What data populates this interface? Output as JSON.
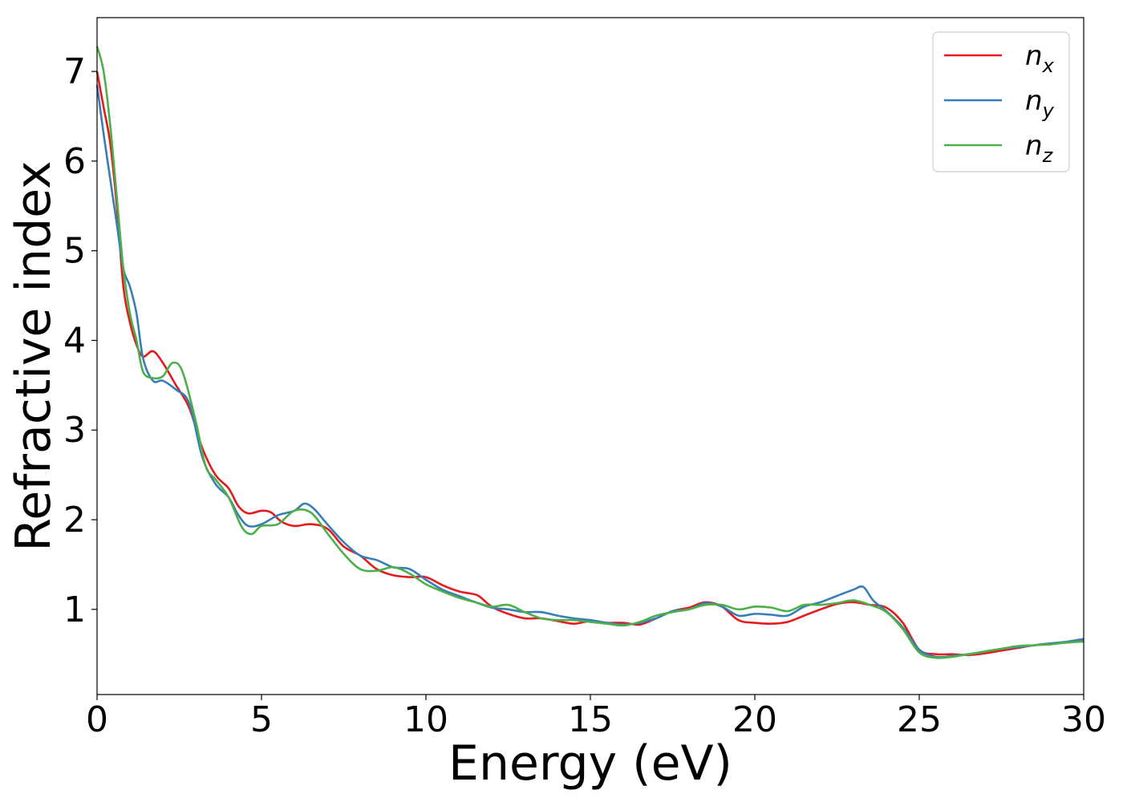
{
  "chart_data": {
    "type": "line",
    "xlabel": "Energy (eV)",
    "ylabel": "Refractive index",
    "xlim": [
      0,
      30
    ],
    "ylim": [
      0.05,
      7.6
    ],
    "x_ticks": [
      0,
      5,
      10,
      15,
      20,
      25,
      30
    ],
    "y_ticks": [
      1,
      2,
      3,
      4,
      5,
      6,
      7
    ],
    "grid": false,
    "legend_position": "top-right",
    "series": [
      {
        "name": "n",
        "subscript": "x",
        "color": "#e41a1c",
        "x": [
          0,
          0.2,
          0.4,
          0.6,
          0.8,
          1.0,
          1.2,
          1.4,
          1.7,
          2.0,
          2.4,
          2.8,
          3.2,
          3.6,
          4.0,
          4.3,
          4.6,
          5.0,
          5.3,
          5.6,
          6.0,
          6.5,
          7.0,
          7.5,
          8.0,
          8.5,
          9.0,
          9.5,
          10.0,
          10.5,
          11.0,
          11.3,
          11.6,
          12.0,
          12.5,
          13.0,
          13.5,
          14.0,
          14.5,
          15.0,
          15.5,
          16.0,
          16.5,
          17.0,
          17.5,
          18.0,
          18.5,
          19.0,
          19.5,
          20.0,
          20.5,
          21.0,
          21.5,
          22.0,
          22.5,
          23.0,
          23.5,
          24.0,
          24.5,
          25.0,
          25.5,
          26.0,
          26.5,
          27.0,
          27.5,
          28.0,
          28.5,
          29.0,
          29.5,
          30.0
        ],
        "y": [
          7.0,
          6.6,
          6.2,
          5.5,
          4.6,
          4.2,
          3.95,
          3.82,
          3.88,
          3.75,
          3.5,
          3.25,
          2.8,
          2.5,
          2.35,
          2.15,
          2.07,
          2.1,
          2.08,
          1.98,
          1.93,
          1.95,
          1.9,
          1.7,
          1.6,
          1.45,
          1.38,
          1.36,
          1.36,
          1.27,
          1.2,
          1.18,
          1.15,
          1.03,
          0.95,
          0.9,
          0.9,
          0.87,
          0.84,
          0.87,
          0.85,
          0.85,
          0.83,
          0.9,
          0.98,
          1.02,
          1.08,
          1.03,
          0.88,
          0.85,
          0.84,
          0.86,
          0.93,
          1.0,
          1.06,
          1.08,
          1.05,
          1.02,
          0.85,
          0.55,
          0.5,
          0.5,
          0.49,
          0.51,
          0.54,
          0.57,
          0.6,
          0.62,
          0.63,
          0.65
        ]
      },
      {
        "name": "n",
        "subscript": "y",
        "color": "#377eb8",
        "x": [
          0,
          0.2,
          0.4,
          0.6,
          0.8,
          1.0,
          1.2,
          1.4,
          1.7,
          2.0,
          2.4,
          2.8,
          3.2,
          3.6,
          4.0,
          4.3,
          4.6,
          5.0,
          5.5,
          6.0,
          6.3,
          6.6,
          7.0,
          7.5,
          8.0,
          8.5,
          9.0,
          9.5,
          10.0,
          10.5,
          11.0,
          11.5,
          12.0,
          12.5,
          13.0,
          13.5,
          14.0,
          14.5,
          15.0,
          15.5,
          16.0,
          16.5,
          17.0,
          17.5,
          18.0,
          18.5,
          19.0,
          19.5,
          20.0,
          20.5,
          21.0,
          21.5,
          22.0,
          22.5,
          23.0,
          23.3,
          23.6,
          24.0,
          24.5,
          25.0,
          25.5,
          26.0,
          26.5,
          27.0,
          27.5,
          28.0,
          28.5,
          29.0,
          29.5,
          30.0
        ],
        "y": [
          6.85,
          6.3,
          5.8,
          5.3,
          4.8,
          4.6,
          4.3,
          3.8,
          3.55,
          3.55,
          3.45,
          3.3,
          2.7,
          2.4,
          2.25,
          2.05,
          1.93,
          1.95,
          2.05,
          2.1,
          2.18,
          2.12,
          1.95,
          1.75,
          1.6,
          1.55,
          1.47,
          1.45,
          1.33,
          1.22,
          1.15,
          1.08,
          1.02,
          1.0,
          0.97,
          0.97,
          0.93,
          0.9,
          0.88,
          0.85,
          0.83,
          0.85,
          0.9,
          0.98,
          1.0,
          1.07,
          1.03,
          0.93,
          0.95,
          0.94,
          0.93,
          1.03,
          1.08,
          1.15,
          1.22,
          1.25,
          1.1,
          0.98,
          0.8,
          0.55,
          0.47,
          0.48,
          0.5,
          0.53,
          0.56,
          0.58,
          0.6,
          0.62,
          0.64,
          0.67
        ]
      },
      {
        "name": "n",
        "subscript": "z",
        "color": "#4daf4a",
        "x": [
          0,
          0.2,
          0.4,
          0.6,
          0.8,
          1.0,
          1.2,
          1.4,
          1.7,
          2.0,
          2.3,
          2.6,
          3.0,
          3.3,
          3.6,
          4.0,
          4.4,
          4.7,
          5.0,
          5.5,
          6.0,
          6.5,
          7.0,
          7.5,
          8.0,
          8.5,
          9.0,
          9.5,
          10.0,
          10.5,
          11.0,
          11.5,
          12.0,
          12.5,
          13.0,
          13.5,
          14.0,
          14.5,
          15.0,
          15.5,
          16.0,
          16.5,
          17.0,
          17.5,
          18.0,
          18.5,
          19.0,
          19.5,
          20.0,
          20.5,
          21.0,
          21.5,
          22.0,
          22.5,
          23.0,
          23.5,
          24.0,
          24.5,
          25.0,
          25.5,
          26.0,
          26.5,
          27.0,
          27.5,
          28.0,
          28.5,
          29.0,
          29.5,
          30.0
        ],
        "y": [
          7.28,
          7.0,
          6.4,
          5.6,
          4.8,
          4.3,
          4.0,
          3.65,
          3.58,
          3.6,
          3.75,
          3.65,
          3.1,
          2.6,
          2.45,
          2.25,
          1.92,
          1.84,
          1.93,
          1.95,
          2.1,
          2.08,
          1.85,
          1.62,
          1.45,
          1.43,
          1.47,
          1.4,
          1.28,
          1.2,
          1.13,
          1.08,
          1.03,
          1.05,
          0.97,
          0.9,
          0.88,
          0.88,
          0.86,
          0.84,
          0.82,
          0.86,
          0.93,
          0.97,
          1.0,
          1.05,
          1.05,
          1.0,
          1.03,
          1.02,
          0.98,
          1.05,
          1.05,
          1.07,
          1.1,
          1.05,
          0.97,
          0.78,
          0.52,
          0.46,
          0.47,
          0.5,
          0.53,
          0.56,
          0.59,
          0.6,
          0.61,
          0.63,
          0.64
        ]
      }
    ]
  }
}
